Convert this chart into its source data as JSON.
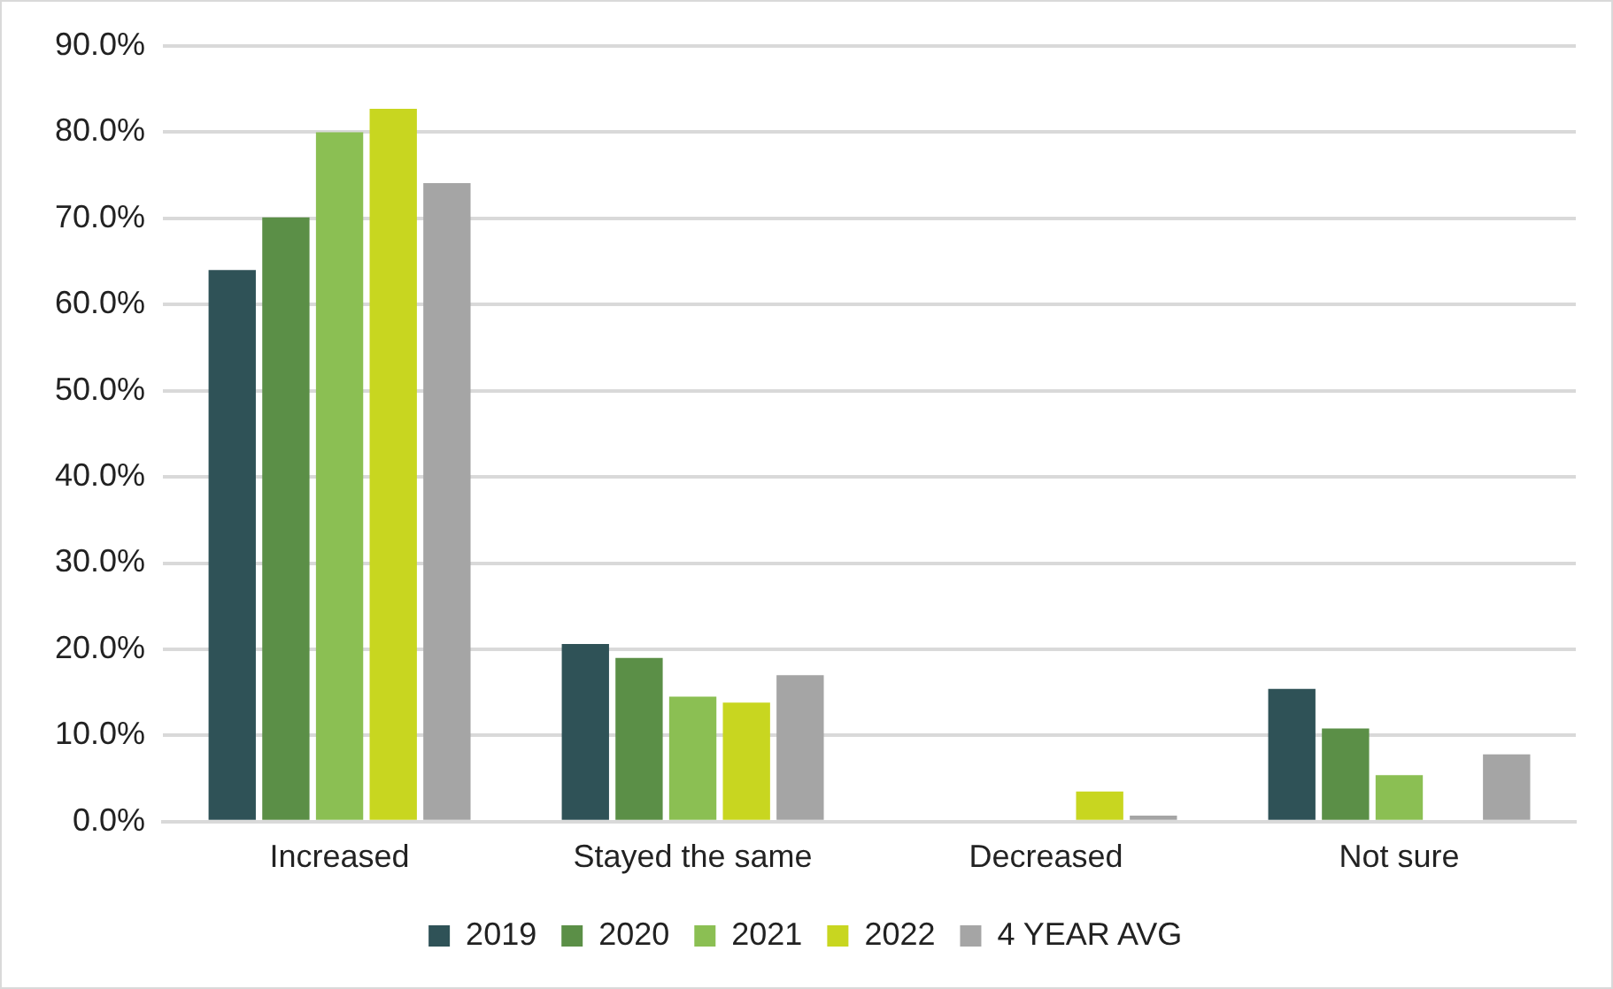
{
  "chart_data": {
    "type": "bar",
    "categories": [
      "Increased",
      "Stayed the same",
      "Decreased",
      "Not sure"
    ],
    "series": [
      {
        "name": "2019",
        "color": "#2f5257",
        "values": [
          64.0,
          20.6,
          0,
          15.4
        ]
      },
      {
        "name": "2020",
        "color": "#5b8f47",
        "values": [
          70.1,
          19.0,
          0,
          10.8
        ]
      },
      {
        "name": "2021",
        "color": "#8bbf53",
        "values": [
          80.0,
          14.5,
          0,
          5.4
        ]
      },
      {
        "name": "2022",
        "color": "#c8d620",
        "values": [
          82.7,
          13.8,
          3.5,
          0
        ]
      },
      {
        "name": "4 YEAR AVG",
        "color": "#a5a5a5",
        "values": [
          74.1,
          17.0,
          0.7,
          7.8
        ]
      }
    ],
    "ylim": [
      0,
      90
    ],
    "yticks": [
      {
        "value": 0,
        "label": "0.0%"
      },
      {
        "value": 10,
        "label": "10.0%"
      },
      {
        "value": 20,
        "label": "20.0%"
      },
      {
        "value": 30,
        "label": "30.0%"
      },
      {
        "value": 40,
        "label": "40.0%"
      },
      {
        "value": 50,
        "label": "50.0%"
      },
      {
        "value": 60,
        "label": "60.0%"
      },
      {
        "value": 70,
        "label": "70.0%"
      },
      {
        "value": 80,
        "label": "80.0%"
      },
      {
        "value": 90,
        "label": "90.0%"
      }
    ],
    "grid": "y",
    "legend": "bottom"
  }
}
